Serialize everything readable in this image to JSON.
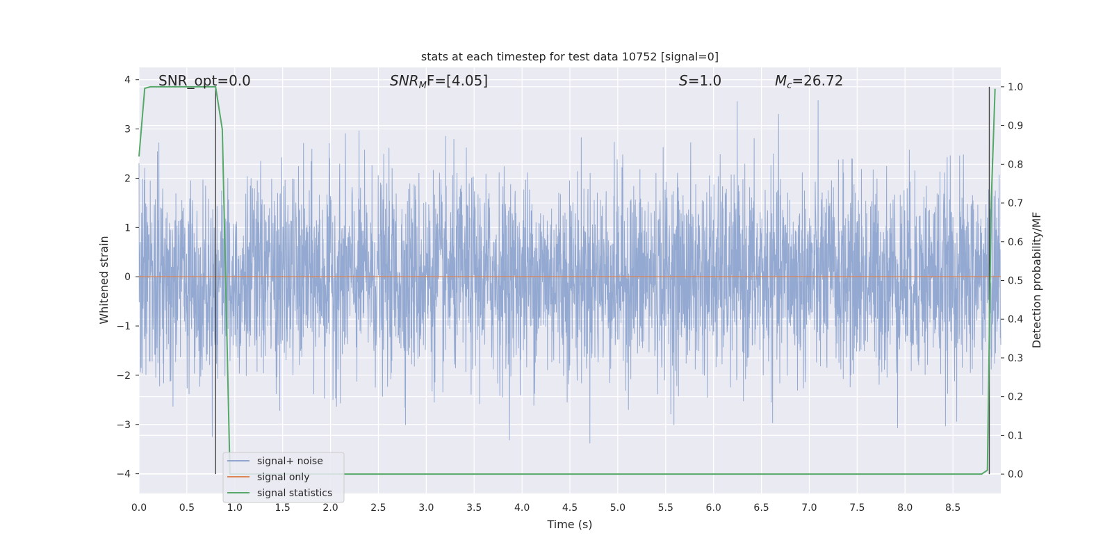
{
  "chart_data": {
    "type": "line",
    "title": "stats at each timestep for test data 10752 [signal=0]",
    "xlabel": "Time (s)",
    "ylabel_left": "Whitened strain",
    "ylabel_right": "Detection probability/MF",
    "xlim": [
      0.0,
      9.0
    ],
    "ylim_left": [
      -4.4,
      4.25
    ],
    "ylim_right": [
      -0.05,
      1.05
    ],
    "xticks": [
      "0.0",
      "0.5",
      "1.0",
      "1.5",
      "2.0",
      "2.5",
      "3.0",
      "3.5",
      "4.0",
      "4.5",
      "5.0",
      "5.5",
      "6.0",
      "6.5",
      "7.0",
      "7.5",
      "8.0",
      "8.5"
    ],
    "yticks_left": [
      "4",
      "3",
      "2",
      "1",
      "0",
      "−1",
      "−2",
      "−3",
      "−4"
    ],
    "yticks_right": [
      "1.0",
      "0.9",
      "0.8",
      "0.7",
      "0.6",
      "0.5",
      "0.4",
      "0.3",
      "0.2",
      "0.1",
      "0.0"
    ],
    "grid": true,
    "legend_position": "lower-left",
    "annotations": {
      "snr_opt": "SNR_opt=0.0",
      "snr_mf_prefix": "SNR",
      "snr_mf_sub": "M",
      "snr_mf_rest": "F=[4.05]",
      "s_var": "S",
      "s_value": "=1.0",
      "mc_var": "M",
      "mc_sub": "c",
      "mc_value": "=26.72"
    },
    "vertical_markers": [
      0.8,
      8.88
    ],
    "series": [
      {
        "name": "signal+ noise",
        "color": "#8fa5cf",
        "axis": "left",
        "kind": "noise",
        "sigma": 1.0,
        "n": 3600
      },
      {
        "name": "signal only",
        "color": "#dd8452",
        "axis": "left",
        "value": 0.0
      },
      {
        "name": "signal statistics",
        "color": "#55a868",
        "axis": "right",
        "x": [
          0.0,
          0.06,
          0.12,
          0.5,
          0.8,
          0.87,
          0.95,
          8.8,
          8.86,
          8.9,
          8.94
        ],
        "y": [
          0.82,
          0.996,
          1.0,
          1.0,
          1.0,
          0.89,
          0.0,
          0.0,
          0.01,
          0.7,
          0.995
        ]
      }
    ]
  }
}
